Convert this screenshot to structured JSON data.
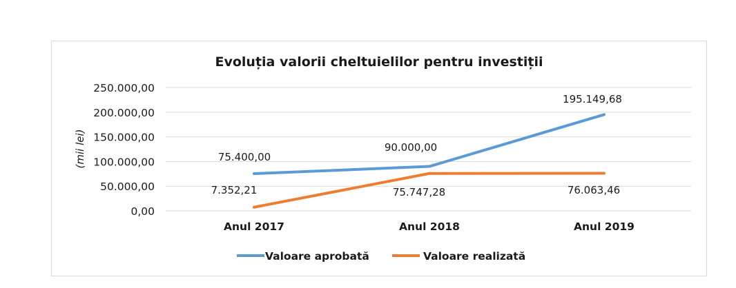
{
  "chart_data": {
    "type": "line",
    "title": "Evoluția valorii cheltuielilor pentru investiții",
    "ylabel": "(mii lei)",
    "xlabel": "",
    "categories": [
      "Anul 2017",
      "Anul 2018",
      "Anul 2019"
    ],
    "ylim": [
      0,
      250000
    ],
    "yticks": [
      0,
      50000,
      100000,
      150000,
      200000,
      250000
    ],
    "ytick_labels": [
      "0,00",
      "50.000,00",
      "100.000,00",
      "150.000,00",
      "200.000,00",
      "250.000,00"
    ],
    "grid": true,
    "legend_position": "bottom",
    "series": [
      {
        "name": "Valoare aprobată",
        "color": "#5b9bd5",
        "values": [
          75400.0,
          90000.0,
          195149.68
        ],
        "labels": [
          "75.400,00",
          "90.000,00",
          "195.149,68"
        ]
      },
      {
        "name": "Valoare realizată",
        "color": "#ed7d31",
        "values": [
          7352.21,
          75747.28,
          76063.46
        ],
        "labels": [
          "7.352,21",
          "75.747,28",
          "76.063,46"
        ]
      }
    ]
  }
}
